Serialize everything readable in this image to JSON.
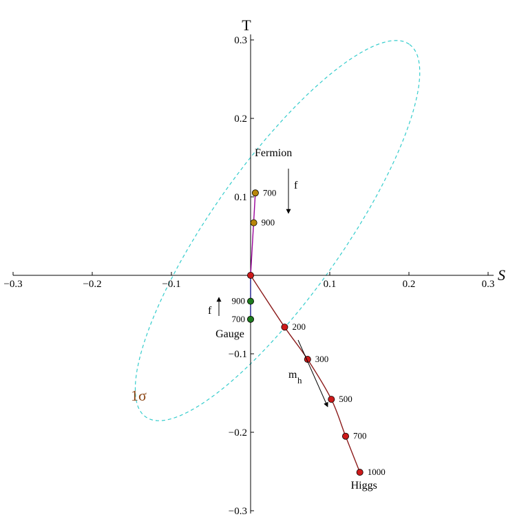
{
  "chart_data": {
    "type": "scatter",
    "title": "",
    "xlabel": "S",
    "ylabel": "T",
    "xlim": [
      -0.3,
      0.3
    ],
    "ylim": [
      -0.3,
      0.3
    ],
    "x_ticks": [
      -0.3,
      -0.2,
      -0.1,
      0.1,
      0.2,
      0.3
    ],
    "y_ticks": [
      0.3,
      0.2,
      0.1,
      -0.1,
      -0.2,
      -0.3
    ],
    "x_tick_labels": [
      "−0.3",
      "−0.2",
      "−0.1",
      "0.1",
      "0.2",
      "0.3"
    ],
    "y_tick_labels": [
      "0.3",
      "0.2",
      "0.1",
      "−0.1",
      "−0.2",
      "−0.3"
    ],
    "grid": false,
    "origin": {
      "x": 0,
      "y": 0
    },
    "series": [
      {
        "name": "Higgs",
        "arrow_label": "m",
        "arrow_label_sub": "h",
        "color": "#cc1a1a",
        "line_color": "#8b1a1a",
        "points": [
          {
            "x": 0.043,
            "y": -0.066,
            "label": "200"
          },
          {
            "x": 0.072,
            "y": -0.107,
            "label": "300"
          },
          {
            "x": 0.102,
            "y": -0.158,
            "label": "500"
          },
          {
            "x": 0.12,
            "y": -0.205,
            "label": "700"
          },
          {
            "x": 0.138,
            "y": -0.251,
            "label": "1000"
          }
        ]
      },
      {
        "name": "Fermion",
        "arrow_label": "f",
        "color": "#b8860b",
        "line_color": "#990099",
        "points": [
          {
            "x": 0.006,
            "y": 0.105,
            "label": "700"
          },
          {
            "x": 0.004,
            "y": 0.067,
            "label": "900"
          }
        ]
      },
      {
        "name": "Gauge",
        "arrow_label": "f",
        "color": "#1e7a1e",
        "line_color": "#1a1a8b",
        "points": [
          {
            "x": 0,
            "y": -0.033,
            "label": "900"
          },
          {
            "x": 0,
            "y": -0.056,
            "label": "700"
          }
        ]
      }
    ],
    "ellipse": {
      "label": "1σ",
      "label_color": "#8b4513",
      "color": "#33cccc",
      "center": {
        "x": 0.034,
        "y": 0.057
      },
      "semi_major": 0.29,
      "semi_minor": 0.083,
      "angle_deg": 55
    }
  }
}
